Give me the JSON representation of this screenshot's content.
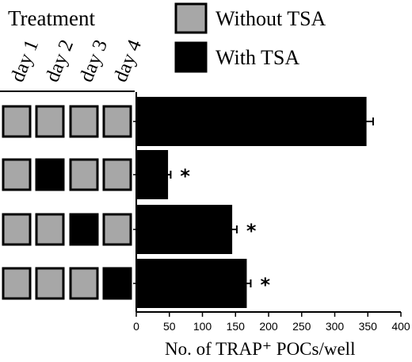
{
  "header": {
    "treatment_label": "Treatment",
    "days": [
      "day 1",
      "day 2",
      "day 3",
      "day 4"
    ]
  },
  "legend": [
    {
      "label": "Without TSA",
      "color": "#a7a7a7"
    },
    {
      "label": "With TSA",
      "color": "#000000"
    }
  ],
  "treatment_grid": [
    [
      "without",
      "without",
      "without",
      "without"
    ],
    [
      "without",
      "with",
      "without",
      "without"
    ],
    [
      "without",
      "without",
      "with",
      "without"
    ],
    [
      "without",
      "without",
      "without",
      "with"
    ]
  ],
  "chart_data": {
    "type": "bar",
    "orientation": "horizontal",
    "values": [
      348,
      48,
      145,
      167
    ],
    "errors": [
      10,
      4,
      7,
      6
    ],
    "significance": [
      "",
      "*",
      "*",
      "*"
    ],
    "xlabel": "No. of TRAP⁺ POCs/well",
    "xlim": [
      0,
      400
    ],
    "xticks": [
      0,
      50,
      100,
      150,
      200,
      250,
      300,
      350,
      400
    ],
    "bar_color": "#000000",
    "grid": false,
    "legend_position": "top"
  }
}
